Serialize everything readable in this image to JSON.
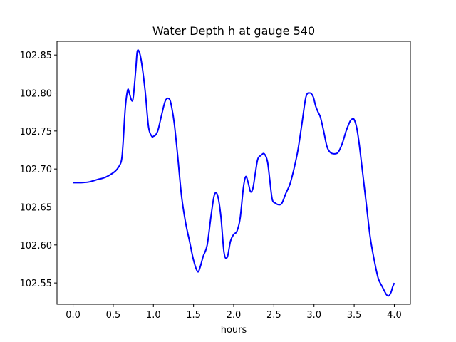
{
  "chart_data": {
    "type": "line",
    "title": "Water Depth h at gauge 540",
    "xlabel": "hours",
    "ylabel": "",
    "xlim": [
      -0.2,
      4.2
    ],
    "ylim": [
      102.522,
      102.868
    ],
    "xticks": [
      "0.0",
      "0.5",
      "1.0",
      "1.5",
      "2.0",
      "2.5",
      "3.0",
      "3.5",
      "4.0"
    ],
    "xtick_values": [
      0.0,
      0.5,
      1.0,
      1.5,
      2.0,
      2.5,
      3.0,
      3.5,
      4.0
    ],
    "yticks": [
      "102.55",
      "102.60",
      "102.65",
      "102.70",
      "102.75",
      "102.80",
      "102.85"
    ],
    "ytick_values": [
      102.55,
      102.6,
      102.65,
      102.7,
      102.75,
      102.8,
      102.85
    ],
    "grid": false,
    "series": [
      {
        "color": "#0000ff",
        "x": [
          0.0,
          0.1,
          0.2,
          0.3,
          0.4,
          0.5,
          0.55,
          0.6,
          0.62,
          0.65,
          0.68,
          0.7,
          0.73,
          0.75,
          0.78,
          0.8,
          0.83,
          0.86,
          0.9,
          0.94,
          0.98,
          1.0,
          1.03,
          1.06,
          1.1,
          1.15,
          1.2,
          1.23,
          1.26,
          1.3,
          1.35,
          1.4,
          1.45,
          1.5,
          1.55,
          1.58,
          1.62,
          1.67,
          1.72,
          1.76,
          1.8,
          1.84,
          1.88,
          1.92,
          1.96,
          2.0,
          2.04,
          2.08,
          2.12,
          2.15,
          2.18,
          2.21,
          2.24,
          2.27,
          2.3,
          2.34,
          2.38,
          2.42,
          2.45,
          2.48,
          2.52,
          2.56,
          2.6,
          2.65,
          2.7,
          2.75,
          2.8,
          2.85,
          2.9,
          2.95,
          2.99,
          3.02,
          3.05,
          3.08,
          3.12,
          3.16,
          3.2,
          3.25,
          3.3,
          3.35,
          3.4,
          3.45,
          3.48,
          3.5,
          3.53,
          3.56,
          3.6,
          3.65,
          3.7,
          3.75,
          3.8,
          3.85,
          3.9,
          3.93,
          3.96,
          3.98,
          4.0
        ],
        "y": [
          102.682,
          102.682,
          102.683,
          102.686,
          102.689,
          102.695,
          102.7,
          102.71,
          102.73,
          102.78,
          102.804,
          102.8,
          102.79,
          102.795,
          102.83,
          102.855,
          102.852,
          102.835,
          102.8,
          102.755,
          102.743,
          102.743,
          102.745,
          102.752,
          102.77,
          102.79,
          102.792,
          102.78,
          102.76,
          102.72,
          102.665,
          102.63,
          102.605,
          102.58,
          102.565,
          102.57,
          102.585,
          102.6,
          102.64,
          102.666,
          102.665,
          102.638,
          102.59,
          102.584,
          102.605,
          102.614,
          102.618,
          102.635,
          102.675,
          102.69,
          102.682,
          102.67,
          102.675,
          102.695,
          102.713,
          102.718,
          102.72,
          102.71,
          102.685,
          102.66,
          102.655,
          102.653,
          102.655,
          102.668,
          102.68,
          102.7,
          102.725,
          102.76,
          102.795,
          102.8,
          102.795,
          102.783,
          102.775,
          102.768,
          102.75,
          102.73,
          102.722,
          102.72,
          102.722,
          102.733,
          102.75,
          102.763,
          102.766,
          102.765,
          102.755,
          102.735,
          102.7,
          102.655,
          102.61,
          102.58,
          102.556,
          102.545,
          102.535,
          102.533,
          102.538,
          102.545,
          102.55
        ]
      }
    ]
  }
}
